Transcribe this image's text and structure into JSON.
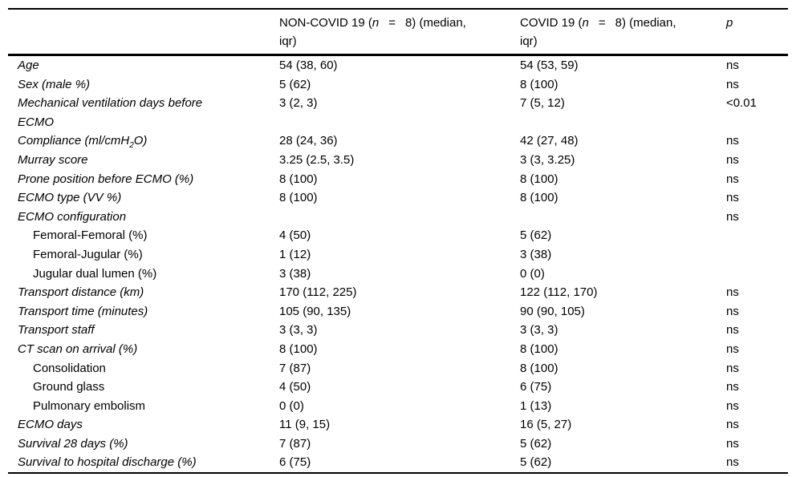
{
  "page": {
    "background_color": "#ffffff",
    "text_color": "#000000",
    "border_color": "#000000"
  },
  "table": {
    "header": {
      "label_col": "",
      "non_covid": {
        "pre": "NON-COVID 19 (",
        "n": "n",
        "eq": "=",
        "post": "8) (median,",
        "line2": "iqr)"
      },
      "covid": {
        "pre": "COVID 19 (",
        "n": "n",
        "eq": "=",
        "post": "8) (median,",
        "line2": "iqr)"
      },
      "p": "p"
    },
    "rows": [
      {
        "label": "Age",
        "style": "main",
        "non_covid": "54 (38, 60)",
        "covid": "54 (53, 59)",
        "p": "ns"
      },
      {
        "label": "Sex (male %)",
        "style": "main",
        "non_covid": "5 (62)",
        "covid": "8 (100)",
        "p": "ns"
      },
      {
        "label": "Mechanical ventilation days before ECMO",
        "style": "main",
        "non_covid": "3 (2, 3)",
        "covid": "7 (5, 12)",
        "p": "<0.01"
      },
      {
        "label": "Compliance (ml/cmH₂O)",
        "style": "main",
        "non_covid": "28 (24, 36)",
        "covid": "42 (27, 48)",
        "p": "ns"
      },
      {
        "label": "Murray score",
        "style": "main",
        "non_covid": "3.25 (2.5, 3.5)",
        "covid": "3 (3, 3.25)",
        "p": "ns"
      },
      {
        "label": "Prone position before ECMO (%)",
        "style": "main",
        "non_covid": "8 (100)",
        "covid": "8 (100)",
        "p": "ns"
      },
      {
        "label": "ECMO type (VV %)",
        "style": "main",
        "non_covid": "8 (100)",
        "covid": "8 (100)",
        "p": "ns"
      },
      {
        "label": "ECMO configuration",
        "style": "main",
        "non_covid": "",
        "covid": "",
        "p": "ns"
      },
      {
        "label": "Femoral-Femoral (%)",
        "style": "sub",
        "non_covid": "4 (50)",
        "covid": "5 (62)",
        "p": ""
      },
      {
        "label": "Femoral-Jugular (%)",
        "style": "sub",
        "non_covid": "1 (12)",
        "covid": "3 (38)",
        "p": ""
      },
      {
        "label": "Jugular dual lumen (%)",
        "style": "sub",
        "non_covid": "3 (38)",
        "covid": "0 (0)",
        "p": ""
      },
      {
        "label": "Transport distance (km)",
        "style": "main",
        "non_covid": "170 (112, 225)",
        "covid": "122 (112, 170)",
        "p": "ns"
      },
      {
        "label": "Transport time (minutes)",
        "style": "main",
        "non_covid": "105 (90, 135)",
        "covid": "90 (90, 105)",
        "p": "ns"
      },
      {
        "label": "Transport staff",
        "style": "main",
        "non_covid": "3 (3, 3)",
        "covid": "3 (3, 3)",
        "p": "ns"
      },
      {
        "label": "CT scan on arrival (%)",
        "style": "main",
        "non_covid": "8 (100)",
        "covid": "8 (100)",
        "p": "ns"
      },
      {
        "label": "Consolidation",
        "style": "sub",
        "non_covid": "7 (87)",
        "covid": "8 (100)",
        "p": "ns"
      },
      {
        "label": "Ground glass",
        "style": "sub",
        "non_covid": "4 (50)",
        "covid": "6 (75)",
        "p": "ns"
      },
      {
        "label": "Pulmonary embolism",
        "style": "sub",
        "non_covid": "0 (0)",
        "covid": "1 (13)",
        "p": "ns"
      },
      {
        "label": "ECMO days",
        "style": "main",
        "non_covid": "11 (9, 15)",
        "covid": "16 (5, 27)",
        "p": "ns"
      },
      {
        "label": "Survival 28 days (%)",
        "style": "main",
        "non_covid": "7 (87)",
        "covid": "5 (62)",
        "p": "ns"
      },
      {
        "label": "Survival to hospital discharge (%)",
        "style": "main",
        "non_covid": "6 (75)",
        "covid": "5 (62)",
        "p": "ns"
      }
    ]
  }
}
